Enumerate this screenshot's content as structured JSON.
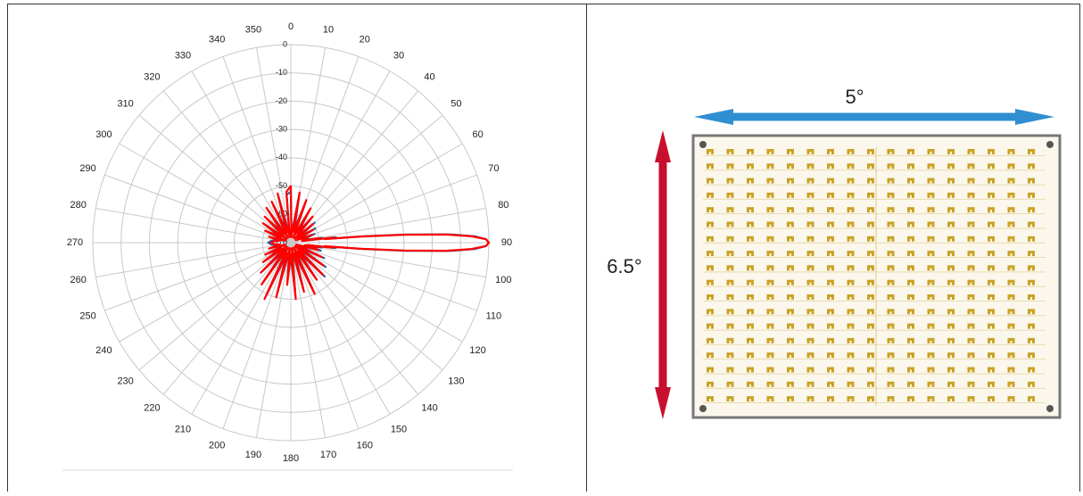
{
  "chart_data": {
    "type": "polar",
    "x": [
      0,
      5,
      10,
      15,
      20,
      25,
      30,
      35,
      40,
      45,
      50,
      55,
      60,
      65,
      70,
      75,
      80,
      81,
      82,
      83,
      84,
      85,
      86,
      87,
      88,
      89,
      90,
      91,
      92,
      93,
      94,
      95,
      96,
      97,
      98,
      99,
      100,
      105,
      110,
      115,
      120,
      125,
      130,
      135,
      140,
      145,
      150,
      155,
      160,
      165,
      170,
      175,
      180,
      185,
      190,
      195,
      200,
      205,
      210,
      215,
      220,
      225,
      230,
      235,
      240,
      245,
      250,
      255,
      260,
      265,
      270,
      275,
      280,
      285,
      290,
      295,
      300,
      305,
      310,
      315,
      320,
      325,
      330,
      335,
      340,
      345,
      350,
      355
    ],
    "series": [
      {
        "color": "#3b5f99",
        "values": [
          -52,
          -67,
          -53,
          -65,
          -55,
          -67,
          -57,
          -65,
          -59,
          -67,
          -59,
          -66,
          -60,
          -67,
          -61,
          -65,
          -63,
          -59,
          -65,
          -54,
          -57,
          -44,
          -29,
          -14,
          -5,
          -1,
          0,
          -1,
          -5,
          -14,
          -29,
          -44,
          -57,
          -54,
          -63,
          -59,
          -64,
          -59,
          -67,
          -57,
          -66,
          -55,
          -67,
          -53,
          -65,
          -55,
          -67,
          -51,
          -65,
          -53,
          -67,
          -52,
          -65,
          -56,
          -67,
          -52,
          -65,
          -50,
          -67,
          -54,
          -66,
          -56,
          -67,
          -59,
          -65,
          -61,
          -67,
          -63,
          -65,
          -63,
          -62,
          -63,
          -65,
          -63,
          -67,
          -61,
          -65,
          -59,
          -67,
          -58,
          -65,
          -56,
          -67,
          -55,
          -65,
          -53,
          -67,
          -53
        ]
      },
      {
        "color": "#ff0000",
        "values": [
          -50,
          -68,
          -52,
          -66,
          -54,
          -68,
          -56,
          -66,
          -58,
          -68,
          -60,
          -67,
          -61,
          -68,
          -62,
          -66,
          -64,
          -60,
          -66,
          -55,
          -58,
          -45,
          -30,
          -15,
          -6,
          -1,
          0,
          -1,
          -6,
          -15,
          -30,
          -45,
          -58,
          -55,
          -64,
          -60,
          -65,
          -60,
          -68,
          -58,
          -67,
          -56,
          -68,
          -54,
          -66,
          -54,
          -68,
          -50,
          -66,
          -52,
          -68,
          -50,
          -66,
          -55,
          -68,
          -50,
          -66,
          -48,
          -68,
          -52,
          -67,
          -55,
          -68,
          -58,
          -66,
          -60,
          -68,
          -62,
          -66,
          -64,
          -63,
          -64,
          -66,
          -62,
          -68,
          -60,
          -66,
          -58,
          -68,
          -57,
          -66,
          -55,
          -68,
          -54,
          -66,
          -52,
          -68,
          -52
        ]
      }
    ],
    "xlim": [
      0,
      360
    ],
    "xticks": [
      0,
      10,
      20,
      30,
      40,
      50,
      60,
      70,
      80,
      90,
      100,
      110,
      120,
      130,
      140,
      150,
      160,
      170,
      180,
      190,
      200,
      210,
      220,
      230,
      240,
      250,
      260,
      270,
      280,
      290,
      300,
      310,
      320,
      330,
      340,
      350
    ],
    "ylim": [
      -70,
      0
    ],
    "yticks": [
      0,
      -10,
      -20,
      -30,
      -40,
      -50,
      -60,
      -70
    ],
    "grid": true
  },
  "figure": {
    "width_label": "5°",
    "height_label": "6.5°"
  }
}
